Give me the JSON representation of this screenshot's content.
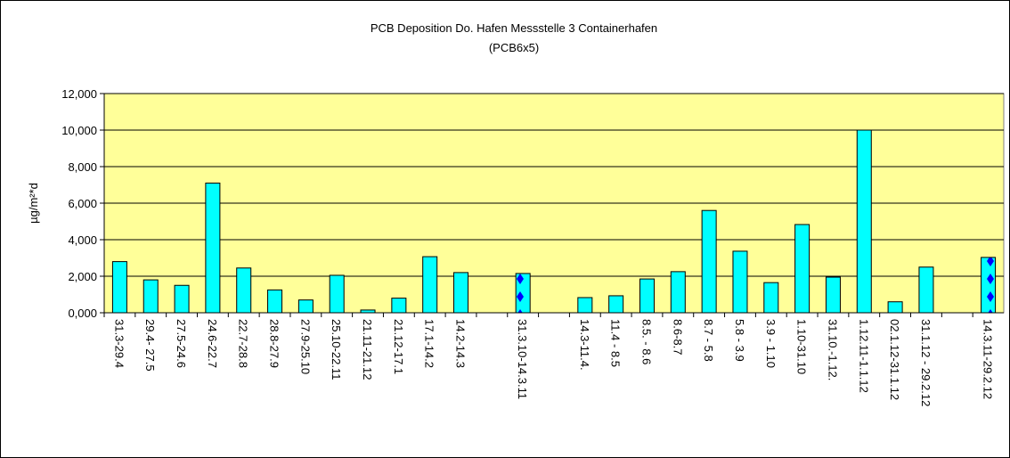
{
  "chart_data": {
    "type": "bar",
    "title": "PCB Deposition Do. Hafen Messstelle 3 Containerhafen",
    "subtitle": "(PCB6x5)",
    "y_label": "µg/m²*d",
    "categories": [
      "31.3-29.4",
      "29.4- 27.5",
      "27.5-24.6",
      "24.6-22.7",
      "22.7-28.8",
      "28.8-27.9",
      "27.9-25.10",
      "25.10-22.11",
      "21.11-21.12",
      "21.12-17.1",
      "17.1-14.2",
      "14.2-14.3",
      null,
      "31.3.10-14.3.11",
      null,
      "14.3-11.4.",
      "11.4 - 8.5",
      "8.5. - 8.6",
      "8.6-8.7",
      "8.7 - 5.8",
      "5.8 - 3.9",
      "3.9 - 1.10",
      "1.10-31.10",
      "31.10.-1.12.",
      "1.12.11-1.1.12",
      "02.1.12-31.1.12",
      "31.1.12 - 29.2.12",
      null,
      "14.3.11-29.2.12"
    ],
    "values": [
      2.8,
      1.8,
      1.5,
      7.1,
      2.45,
      1.25,
      0.7,
      2.05,
      0.15,
      0.8,
      3.07,
      2.2,
      null,
      2.15,
      null,
      0.83,
      0.93,
      1.85,
      2.25,
      5.6,
      3.37,
      1.65,
      4.83,
      1.95,
      10.0,
      0.6,
      2.5,
      null,
      3.03
    ],
    "color": "#00ffff",
    "hatched": [
      13,
      28
    ],
    "hatch_color": "#0000ff",
    "ylim": [
      0,
      12
    ],
    "yticks": [
      {
        "value": 0,
        "label": "0,000"
      },
      {
        "value": 2,
        "label": "2,000"
      },
      {
        "value": 4,
        "label": "4,000"
      },
      {
        "value": 6,
        "label": "6,000"
      },
      {
        "value": 8,
        "label": "8,000"
      },
      {
        "value": 10,
        "label": "10,000"
      },
      {
        "value": 12,
        "label": "12,000"
      }
    ],
    "grid": true,
    "plot_background": "#ffff99"
  }
}
